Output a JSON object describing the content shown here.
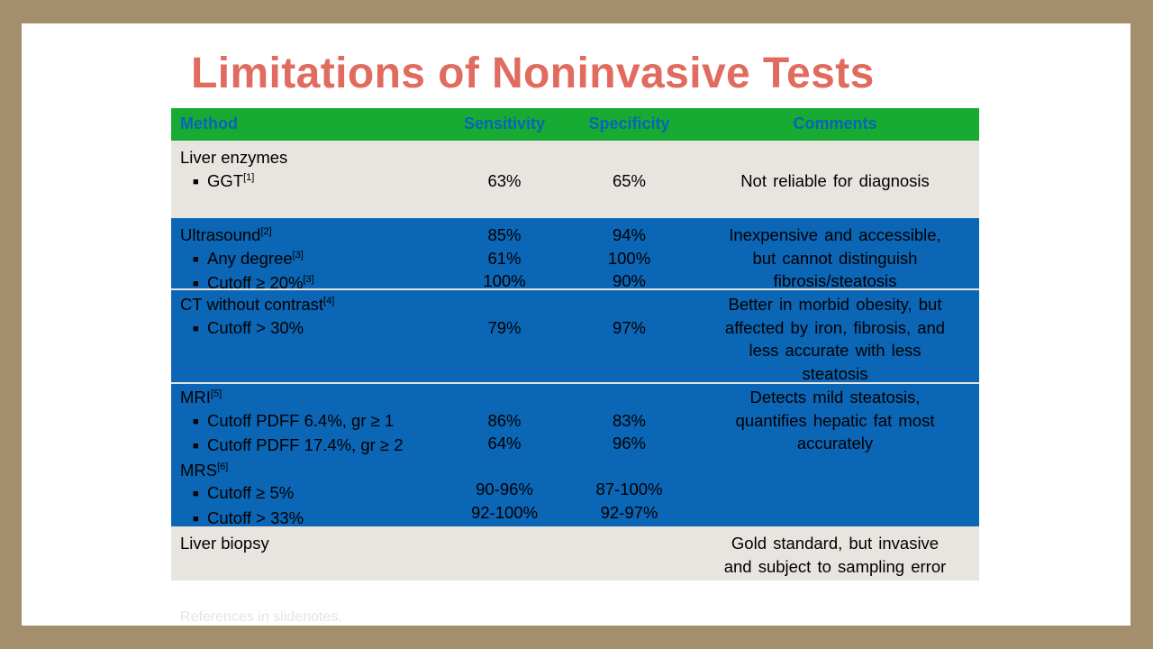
{
  "title": "Limitations of Noninvasive Tests",
  "colors": {
    "title": "#e06b5e",
    "header_bg": "#18ab33",
    "header_text": "#0b64b7",
    "blue_row": "#0b66b5",
    "light_row": "#e8e4df",
    "frame": "#a48f6c"
  },
  "table": {
    "headers": {
      "method": "Method",
      "sensitivity": "Sensitivity",
      "specificity": "Specificity",
      "comments": "Comments"
    },
    "liver_enzymes": {
      "label": "Liver enzymes",
      "ggt": {
        "label": "GGT",
        "ref": "[1]",
        "sensitivity": "63%",
        "specificity": "65%"
      },
      "comment": "Not reliable for diagnosis"
    },
    "ultrasound": {
      "label": "Ultrasound",
      "ref": "[2]",
      "sensitivity": "85%",
      "specificity": "94%",
      "any_degree": {
        "label": "Any degree",
        "ref": "[3]",
        "sensitivity": "61%",
        "specificity": "100%"
      },
      "cutoff20": {
        "label": "Cutoff ≥ 20%",
        "ref": "[3]",
        "sensitivity": "100%",
        "specificity": "90%"
      },
      "comment_lines": [
        "Inexpensive and accessible,",
        "but cannot distinguish",
        "fibrosis/steatosis"
      ]
    },
    "ct": {
      "label": "CT without contrast",
      "ref": "[4]",
      "cutoff30": {
        "label": "Cutoff > 30%",
        "sensitivity": "79%",
        "specificity": "97%"
      },
      "comment_lines": [
        "Better in morbid obesity, but",
        "affected by iron, fibrosis, and",
        "less accurate with less",
        "steatosis"
      ]
    },
    "mri": {
      "label": "MRI",
      "ref": "[5]",
      "pdff64": {
        "label": "Cutoff PDFF 6.4%, gr ≥ 1",
        "sensitivity": "86%",
        "specificity": "83%"
      },
      "pdff174": {
        "label": "Cutoff PDFF 17.4%, gr ≥ 2",
        "sensitivity": "64%",
        "specificity": "96%"
      },
      "comment_lines": [
        "Detects mild steatosis,",
        "quantifies hepatic fat most",
        "accurately"
      ]
    },
    "mrs": {
      "label": "MRS",
      "ref": "[6]",
      "cutoff5": {
        "label": "Cutoff ≥ 5%",
        "sensitivity": "90-96%",
        "specificity": "87-100%"
      },
      "cutoff33": {
        "label": "Cutoff > 33%",
        "sensitivity": "92-100%",
        "specificity": "92-97%"
      }
    },
    "biopsy": {
      "label": "Liver biopsy",
      "comment_lines": [
        "Gold standard, but invasive",
        "and subject to sampling  error"
      ]
    }
  },
  "footer": "References in slidenotes."
}
